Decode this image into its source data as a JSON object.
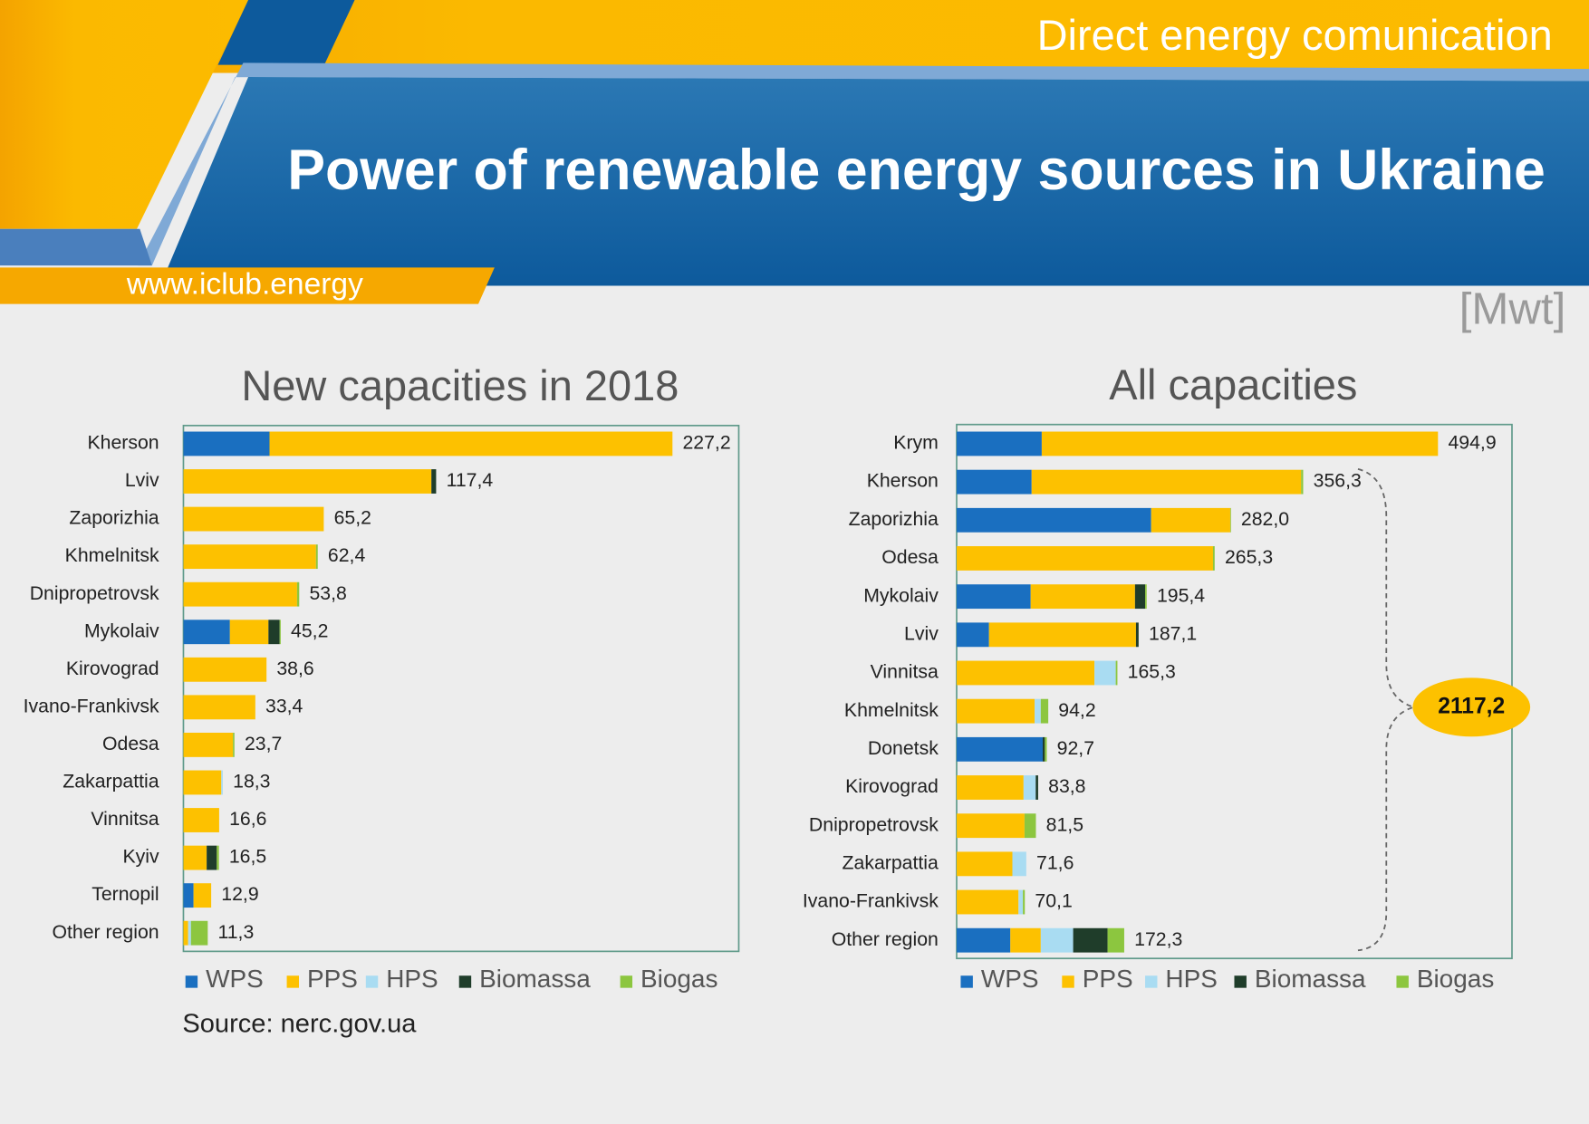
{
  "header": {
    "tagline": "Direct energy comunication",
    "title": "Power of renewable energy sources in Ukraine",
    "website": "www.iclub.energy",
    "unit": "[Mwt]"
  },
  "source": "Source: nerc.gov.ua",
  "chart_data": [
    {
      "type": "bar",
      "orientation": "horizontal",
      "stacked": true,
      "title": "New capacities in 2018",
      "categories": [
        "Kherson",
        "Lviv",
        "Zaporizhia",
        "Khmelnitsk",
        "Dnipropetrovsk",
        "Mykolaiv",
        "Kirovograd",
        "Ivano-Frankivsk",
        "Odesa",
        "Zakarpattia",
        "Vinnitsa",
        "Kyiv",
        "Ternopil",
        "Other region"
      ],
      "series": [
        {
          "name": "WPS",
          "color": "#1a6fc0",
          "values": [
            40.0,
            0,
            0,
            0,
            0,
            21.6,
            0,
            0,
            0,
            0,
            0,
            0,
            4.7,
            0
          ]
        },
        {
          "name": "PPS",
          "color": "#fdc100",
          "values": [
            187.2,
            115.2,
            65.2,
            61.6,
            52.8,
            17.9,
            38.6,
            33.4,
            23.0,
            17.6,
            16.6,
            10.8,
            8.2,
            2.2
          ]
        },
        {
          "name": "HPS",
          "color": "#a9dcf2",
          "values": [
            0,
            0,
            0,
            0,
            0,
            0,
            0,
            0,
            0,
            0.7,
            0,
            0,
            0,
            1.3
          ]
        },
        {
          "name": "Biomassa",
          "color": "#1f3d2a",
          "values": [
            0,
            2.2,
            0,
            0,
            0,
            5.2,
            0,
            0,
            0,
            0,
            0,
            4.7,
            0,
            0
          ]
        },
        {
          "name": "Biogas",
          "color": "#8cc63f",
          "values": [
            0,
            0,
            0,
            0.8,
            1.0,
            0.5,
            0,
            0,
            0.7,
            0,
            0,
            1.0,
            0,
            7.8
          ]
        }
      ],
      "totals": [
        227.2,
        117.4,
        65.2,
        62.4,
        53.8,
        45.2,
        38.6,
        33.4,
        23.7,
        18.3,
        16.6,
        16.5,
        12.9,
        11.3
      ],
      "total_labels": [
        "227,2",
        "117,4",
        "65,2",
        "62,4",
        "53,8",
        "45,2",
        "38,6",
        "33,4",
        "23,7",
        "18,3",
        "16,6",
        "16,5",
        "12,9",
        "11,3"
      ],
      "xlim": [
        0,
        258
      ]
    },
    {
      "type": "bar",
      "orientation": "horizontal",
      "stacked": true,
      "title": "All capacities",
      "categories": [
        "Krym",
        "Kherson",
        "Zaporizhia",
        "Odesa",
        "Mykolaiv",
        "Lviv",
        "Vinnitsa",
        "Khmelnitsk",
        "Donetsk",
        "Kirovograd",
        "Dnipropetrovsk",
        "Zakarpattia",
        "Ivano-Frankivsk",
        "Other region"
      ],
      "series": [
        {
          "name": "WPS",
          "color": "#1a6fc0",
          "values": [
            87.5,
            77.1,
            200.0,
            0,
            76.1,
            33.3,
            0,
            0,
            88.5,
            0,
            0,
            0,
            0,
            55.2
          ]
        },
        {
          "name": "PPS",
          "color": "#fdc100",
          "values": [
            407.4,
            277.1,
            81.3,
            263.6,
            107.3,
            151.1,
            141.7,
            80.2,
            0,
            68.8,
            69.8,
            57.3,
            63.6,
            31.3
          ]
        },
        {
          "name": "HPS",
          "color": "#a9dcf2",
          "values": [
            0,
            0,
            0,
            0,
            0,
            0,
            21.9,
            6.3,
            0,
            12.5,
            0,
            14.3,
            4.5,
            33.3
          ]
        },
        {
          "name": "Biomassa",
          "color": "#1f3d2a",
          "values": [
            0,
            0,
            0,
            0,
            10.4,
            2.7,
            0,
            0,
            2.2,
            2.5,
            0,
            0,
            0,
            35.4
          ]
        },
        {
          "name": "Biogas",
          "color": "#8cc63f",
          "values": [
            0,
            2.1,
            0.7,
            1.7,
            1.6,
            0,
            1.7,
            7.7,
            2.0,
            0,
            11.7,
            0,
            2.0,
            17.1
          ]
        }
      ],
      "totals": [
        494.9,
        356.3,
        282.0,
        265.3,
        195.4,
        187.1,
        165.3,
        94.2,
        92.7,
        83.8,
        81.5,
        71.6,
        70.1,
        172.3
      ],
      "total_labels": [
        "494,9",
        "356,3",
        "282,0",
        "265,3",
        "195,4",
        "187,1",
        "165,3",
        "94,2",
        "92,7",
        "83,8",
        "81,5",
        "71,6",
        "70,1",
        "172,3"
      ],
      "annotation": "2117,2",
      "xlim": [
        0,
        571
      ]
    }
  ]
}
